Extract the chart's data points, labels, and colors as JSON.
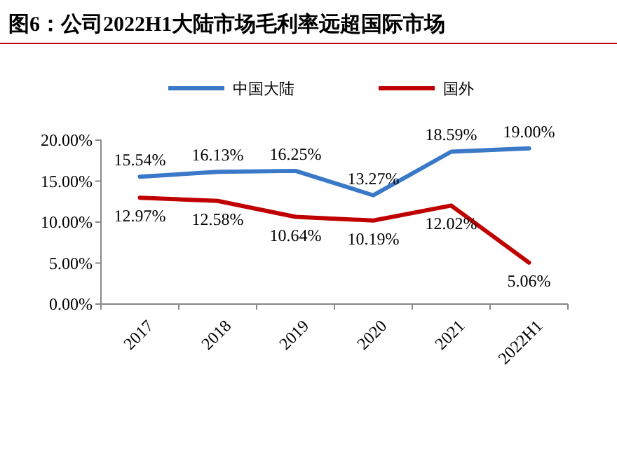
{
  "chart_data": {
    "type": "line",
    "title": "图6：公司2022H1大陆市场毛利率远超国际市场",
    "categories": [
      "2017",
      "2018",
      "2019",
      "2020",
      "2021",
      "2022H1"
    ],
    "series": [
      {
        "name": "中国大陆",
        "color": "#3a78c8",
        "values": [
          15.54,
          16.13,
          16.25,
          13.27,
          18.59,
          19.0
        ],
        "value_labels": [
          "15.54%",
          "16.13%",
          "16.25%",
          "13.27%",
          "18.59%",
          "19.00%"
        ]
      },
      {
        "name": "国外",
        "color": "#c00000",
        "values": [
          12.97,
          12.58,
          10.64,
          10.19,
          12.02,
          5.06
        ],
        "value_labels": [
          "12.97%",
          "12.58%",
          "10.64%",
          "10.19%",
          "12.02%",
          "5.06%"
        ]
      }
    ],
    "ylim": [
      0,
      20
    ],
    "yticks": [
      {
        "value": 0,
        "label": "0.00%"
      },
      {
        "value": 5,
        "label": "5.00%"
      },
      {
        "value": 10,
        "label": "10.00%"
      },
      {
        "value": 15,
        "label": "15.00%"
      },
      {
        "value": 20,
        "label": "20.00%"
      }
    ],
    "legend": "top",
    "grid": false,
    "marker": "none",
    "line_style": "solid"
  }
}
